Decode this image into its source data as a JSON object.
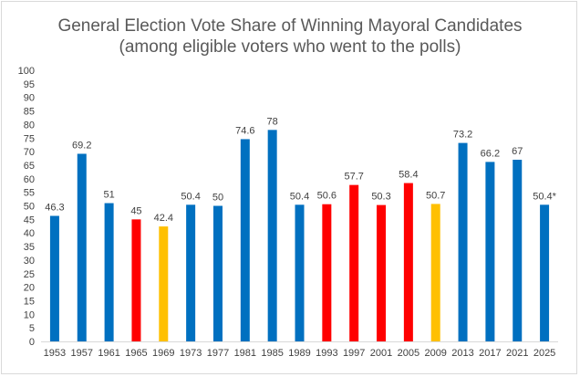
{
  "chart_data": {
    "type": "bar",
    "title": "General Election Vote Share of Winning Mayoral Candidates",
    "subtitle": "(among eligible voters who went to the polls)",
    "xlabel": "",
    "ylabel": "",
    "ylim": [
      0,
      100
    ],
    "ytick_step": 5,
    "grid": false,
    "legend": "none",
    "colors": {
      "blue": "#0070C0",
      "red": "#FF0000",
      "yellow": "#FFC000"
    },
    "categories": [
      "1953",
      "1957",
      "1961",
      "1965",
      "1969",
      "1973",
      "1977",
      "1981",
      "1985",
      "1989",
      "1993",
      "1997",
      "2001",
      "2005",
      "2009",
      "2013",
      "2017",
      "2021",
      "2025"
    ],
    "values": [
      46.3,
      69.2,
      51,
      45,
      42.4,
      50.4,
      50,
      74.6,
      78,
      50.4,
      50.6,
      57.7,
      50.3,
      58.4,
      50.7,
      73.2,
      66.2,
      67,
      50.4
    ],
    "data_labels": [
      "46.3",
      "69.2",
      "51",
      "45",
      "42.4",
      "50.4",
      "50",
      "74.6",
      "78",
      "50.4",
      "50.6",
      "57.7",
      "50.3",
      "58.4",
      "50.7",
      "73.2",
      "66.2",
      "67",
      "50.4*"
    ],
    "bar_colors": [
      "blue",
      "blue",
      "blue",
      "red",
      "yellow",
      "blue",
      "blue",
      "blue",
      "blue",
      "blue",
      "red",
      "red",
      "red",
      "red",
      "yellow",
      "blue",
      "blue",
      "blue",
      "blue"
    ]
  }
}
